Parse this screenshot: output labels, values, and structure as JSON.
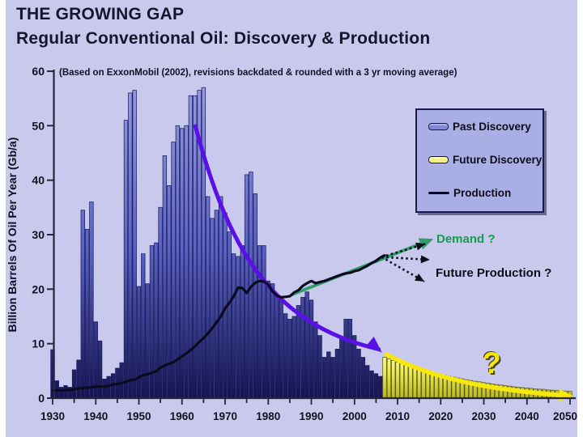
{
  "slide": {
    "title_line1": "THE GROWING GAP",
    "title_line2": "Regular Conventional Oil: Discovery & Production",
    "subtitle": "(Based on ExxonMobil (2002), revisions backdated & rounded with a 3 yr moving average)"
  },
  "legend": {
    "items": [
      {
        "label": "Past Discovery",
        "swatch": "blue-bar-swatch"
      },
      {
        "label": "Future Discovery",
        "swatch": "yellow-bar-swatch"
      },
      {
        "label": "Production",
        "swatch": "black-line-swatch"
      }
    ]
  },
  "annotations": {
    "demand_label": "Demand ?",
    "future_production_label": "Future Production ?",
    "future_question_mark": "?"
  },
  "colors": {
    "background": "#c9c9ed",
    "axis": "#26263a",
    "tick_text": "#111122",
    "bar_blue_top": "#9aa0e4",
    "bar_blue_mid": "#5a62c2",
    "bar_blue_bottom": "#141450",
    "bar_blue_outline": "#1c1c60",
    "bar_yellow_top": "#ffffb0",
    "bar_yellow_mid": "#f0ee55",
    "bar_yellow_bottom": "#b8b81e",
    "bar_yellow_outline": "#55551a",
    "production_line": "#0b0b20",
    "demand_green": "#2f9e68",
    "purple_arrow": "#5a10e6",
    "yellow_arrow": "#f6e80e",
    "dotted_arrow": "#0d0d1a"
  },
  "chart_data": {
    "type": "bar",
    "title": "Regular Conventional Oil: Discovery & Production",
    "xlabel": "",
    "ylabel": "Billion Barrels Of Oil Per Year (Gb/a)",
    "xlim": [
      1930,
      2051
    ],
    "ylim": [
      0,
      60
    ],
    "x_ticks": [
      1930,
      1940,
      1950,
      1960,
      1970,
      1980,
      1990,
      2000,
      2010,
      2020,
      2030,
      2040,
      2050
    ],
    "y_ticks": [
      0,
      10,
      20,
      30,
      40,
      50,
      60
    ],
    "grid": false,
    "legend_position": "upper right",
    "series": [
      {
        "name": "Past Discovery",
        "type": "bar",
        "start_year": 1930,
        "values": [
          8.9,
          3.2,
          2.0,
          2.3,
          2.0,
          5.2,
          7.0,
          34.5,
          31.0,
          36.0,
          14.0,
          10.5,
          3.5,
          4.0,
          4.5,
          5.5,
          6.5,
          51.0,
          56.0,
          56.5,
          20.5,
          26.5,
          21.0,
          28.0,
          28.5,
          35.0,
          44.5,
          39.0,
          47.0,
          50.0,
          49.5,
          50.0,
          55.5,
          55.5,
          56.5,
          57.0,
          37.0,
          33.0,
          34.5,
          37.0,
          34.0,
          30.5,
          26.5,
          26.0,
          28.0,
          41.0,
          41.5,
          37.5,
          28.0,
          28.0,
          21.5,
          21.0,
          19.0,
          18.5,
          15.5,
          14.5,
          15.0,
          17.0,
          18.5,
          19.5,
          18.0,
          14.0,
          11.5,
          7.5,
          8.5,
          7.5,
          9.0,
          11.0,
          14.5,
          14.5,
          11.5,
          9.0,
          7.5,
          6.0,
          5.0,
          4.5,
          4.0
        ]
      },
      {
        "name": "Future Discovery",
        "type": "bar",
        "start_year": 2007,
        "values": [
          7.5,
          7.2,
          6.9,
          6.6,
          6.35,
          6.1,
          5.85,
          5.6,
          5.4,
          5.15,
          4.95,
          4.75,
          4.55,
          4.35,
          4.2,
          4.0,
          3.85,
          3.7,
          3.55,
          3.4,
          3.25,
          3.1,
          3.0,
          2.85,
          2.75,
          2.6,
          2.5,
          2.4,
          2.3,
          2.2,
          2.1,
          2.0,
          1.95,
          1.85,
          1.8,
          1.7,
          1.65,
          1.6,
          1.5,
          1.45,
          1.4,
          1.35,
          1.3,
          1.25
        ]
      },
      {
        "name": "Production",
        "type": "line",
        "start_year": 1930,
        "values": [
          1.4,
          1.45,
          1.4,
          1.45,
          1.5,
          1.6,
          1.75,
          1.85,
          1.9,
          2.0,
          2.1,
          2.15,
          2.1,
          2.25,
          2.5,
          2.6,
          2.75,
          3.0,
          3.3,
          3.4,
          3.8,
          4.2,
          4.4,
          4.7,
          4.9,
          5.6,
          6.0,
          6.3,
          6.6,
          7.1,
          7.7,
          8.2,
          8.8,
          9.5,
          10.3,
          11.0,
          11.9,
          12.8,
          13.9,
          15.0,
          16.5,
          17.5,
          18.7,
          20.3,
          20.2,
          19.3,
          20.4,
          21.2,
          21.5,
          21.4,
          20.8,
          19.6,
          18.8,
          18.5,
          18.6,
          18.7,
          19.4,
          19.8,
          20.6,
          21.1,
          21.5,
          21.1,
          21.3,
          21.5,
          21.8,
          22.1,
          22.4,
          22.7,
          22.9,
          23.0,
          23.3,
          23.5,
          23.9,
          24.3,
          24.8,
          25.2,
          25.8,
          26.2
        ]
      },
      {
        "name": "Demand ?",
        "type": "arrow-line",
        "points": [
          [
            1985.5,
            19.0
          ],
          [
            2016.8,
            28.8
          ]
        ]
      }
    ],
    "arrows": {
      "discovery_decline": {
        "color_key": "purple_arrow",
        "path_years": [
          [
            1963.1,
            49.9
          ],
          [
            1970.4,
            28.5
          ],
          [
            1979.8,
            13.7
          ],
          [
            2005.6,
            9.0
          ]
        ],
        "head_angle_deg": 40
      },
      "future_discovery_trend": {
        "color_key": "yellow_arrow",
        "path_years": [
          [
            2007.4,
            8.0
          ],
          [
            2019.0,
            3.3
          ],
          [
            2032.0,
            1.5
          ],
          [
            2048.5,
            0.5
          ]
        ],
        "head_angle_deg": 4
      },
      "future_production_fan": {
        "color_key": "dotted_arrow",
        "origin": [
          2006.3,
          25.9
        ],
        "tips": [
          [
            2016.4,
            28.3
          ],
          [
            2017.5,
            25.4
          ],
          [
            2016.2,
            21.4
          ]
        ]
      }
    }
  }
}
